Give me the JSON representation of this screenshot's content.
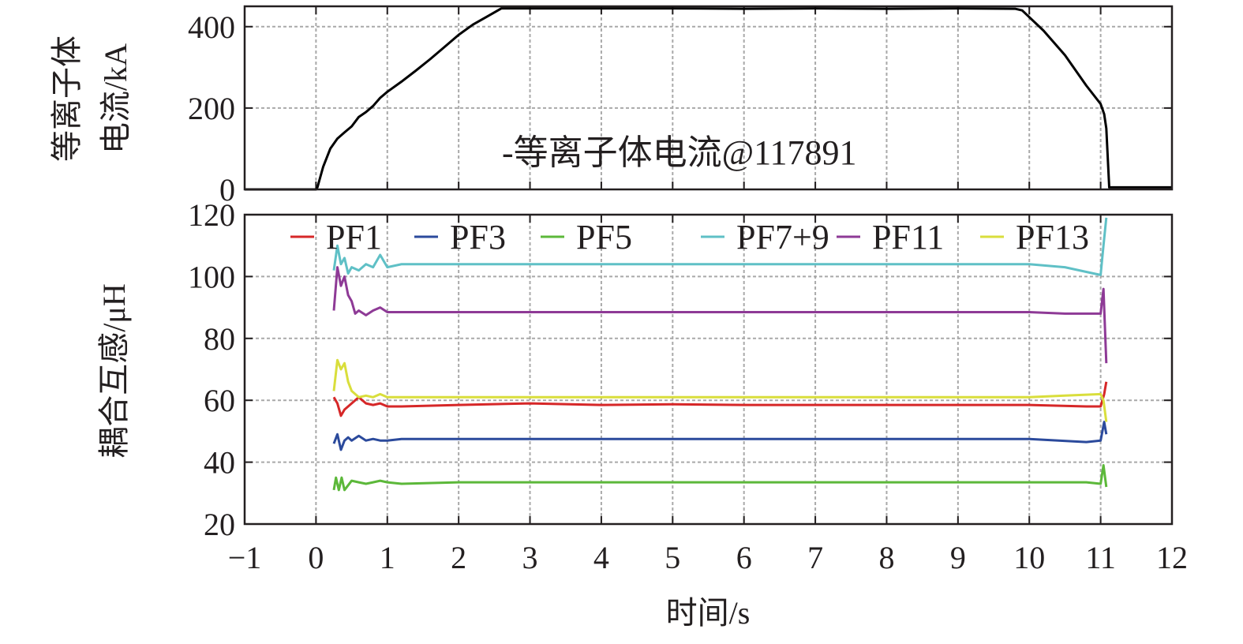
{
  "chart_data": [
    {
      "type": "line",
      "panel": "top",
      "ylabel_line1": "等离子体",
      "ylabel_line2": "电流/kA",
      "xlim": [
        -1,
        12
      ],
      "ylim": [
        0,
        450
      ],
      "yticks": [
        0,
        200,
        400
      ],
      "grid": true,
      "legend": "bottom-center",
      "annotation": "-等离子体电流@117891",
      "series": [
        {
          "name": "等离子体电流@117891",
          "color": "#000000",
          "x": [
            -1,
            0.0,
            0.02,
            0.1,
            0.2,
            0.3,
            0.4,
            0.5,
            0.6,
            0.7,
            0.8,
            0.9,
            1.0,
            1.2,
            1.4,
            1.6,
            1.8,
            2.0,
            2.2,
            2.4,
            2.6,
            3.0,
            4.0,
            5.0,
            6.0,
            7.0,
            8.0,
            9.0,
            9.8,
            9.9,
            10.2,
            10.5,
            10.8,
            11.0,
            11.05,
            11.08,
            11.12,
            12
          ],
          "y": [
            0,
            0,
            5,
            55,
            100,
            125,
            140,
            155,
            178,
            190,
            205,
            225,
            240,
            265,
            292,
            320,
            350,
            380,
            405,
            425,
            445,
            445,
            445,
            445,
            444,
            445,
            444,
            445,
            444,
            440,
            390,
            330,
            255,
            210,
            185,
            150,
            5,
            5
          ]
        }
      ]
    },
    {
      "type": "line",
      "panel": "bottom",
      "xlabel": "时间/s",
      "ylabel": "耦合互感/μH",
      "xlim": [
        -1,
        12
      ],
      "ylim": [
        20,
        120
      ],
      "xticks": [
        -1,
        0,
        1,
        2,
        3,
        4,
        5,
        6,
        7,
        8,
        9,
        10,
        11,
        12
      ],
      "xtick_labels": [
        "−1",
        "0",
        "1",
        "2",
        "3",
        "4",
        "5",
        "6",
        "7",
        "8",
        "9",
        "10",
        "11",
        "12"
      ],
      "yticks": [
        20,
        40,
        60,
        80,
        100,
        120
      ],
      "grid": true,
      "legend": "top",
      "series": [
        {
          "name": "PF1",
          "color": "#d62728",
          "x": [
            0.25,
            0.3,
            0.35,
            0.4,
            0.5,
            0.6,
            0.7,
            0.8,
            0.9,
            1.0,
            1.2,
            2.0,
            3.0,
            4.0,
            5.0,
            6.0,
            7.0,
            8.0,
            9.0,
            10.0,
            10.8,
            11.0,
            11.05,
            11.08
          ],
          "y": [
            61,
            59,
            55,
            57,
            59,
            61,
            59,
            58.5,
            59,
            58,
            58,
            58.5,
            59,
            58.5,
            58.7,
            58.5,
            58.5,
            58.5,
            58.5,
            58.5,
            58,
            58,
            62,
            66
          ]
        },
        {
          "name": "PF3",
          "color": "#2b4a9c",
          "x": [
            0.25,
            0.3,
            0.35,
            0.4,
            0.45,
            0.5,
            0.6,
            0.7,
            0.8,
            0.9,
            1.0,
            1.2,
            2.0,
            3.0,
            4.0,
            5.0,
            6.0,
            7.0,
            8.0,
            9.0,
            10.0,
            10.8,
            11.0,
            11.05,
            11.08
          ],
          "y": [
            46,
            49,
            44,
            47,
            48,
            47,
            48.5,
            47,
            47.5,
            47,
            47,
            47.5,
            47.5,
            47.5,
            47.5,
            47.5,
            47.5,
            47.5,
            47.5,
            47.5,
            47.5,
            46.5,
            47,
            53,
            49
          ]
        },
        {
          "name": "PF5",
          "color": "#5cb83a",
          "x": [
            0.25,
            0.28,
            0.32,
            0.36,
            0.4,
            0.5,
            0.6,
            0.7,
            0.8,
            0.9,
            1.0,
            1.2,
            2.0,
            3.0,
            4.0,
            5.0,
            6.0,
            7.0,
            8.0,
            9.0,
            10.0,
            10.8,
            11.0,
            11.04,
            11.08
          ],
          "y": [
            31,
            35,
            31,
            35,
            31,
            34,
            33.5,
            33,
            33.5,
            34,
            33.5,
            33,
            33.5,
            33.5,
            33.5,
            33.5,
            33.5,
            33.5,
            33.5,
            33.5,
            33.5,
            33.5,
            33,
            39,
            32
          ]
        },
        {
          "name": "PF7+9",
          "color": "#5fc0c6",
          "x": [
            0.25,
            0.3,
            0.35,
            0.4,
            0.45,
            0.5,
            0.6,
            0.7,
            0.8,
            0.9,
            1.0,
            1.2,
            2.0,
            3.0,
            4.0,
            5.0,
            6.0,
            7.0,
            8.0,
            9.0,
            10.0,
            10.5,
            10.9,
            11.0,
            11.04,
            11.08
          ],
          "y": [
            102,
            110,
            104,
            106,
            101,
            103,
            102,
            104,
            103,
            107,
            103,
            104,
            104,
            104,
            104,
            104,
            104,
            104,
            104,
            104,
            104,
            103,
            101,
            100.5,
            110,
            119
          ]
        },
        {
          "name": "PF11",
          "color": "#8e3a96",
          "x": [
            0.25,
            0.3,
            0.35,
            0.4,
            0.45,
            0.5,
            0.55,
            0.6,
            0.7,
            0.8,
            0.9,
            1.0,
            1.2,
            2.0,
            3.0,
            4.0,
            5.0,
            6.0,
            7.0,
            8.0,
            9.0,
            10.0,
            10.5,
            11.0,
            11.04,
            11.08
          ],
          "y": [
            89,
            103,
            97,
            100,
            94,
            92,
            88,
            89,
            87.5,
            89,
            90,
            88.5,
            88.5,
            88.5,
            88.5,
            88.5,
            88.5,
            88.5,
            88.5,
            88.5,
            88.5,
            88.5,
            88,
            88,
            96,
            72
          ]
        },
        {
          "name": "PF13",
          "color": "#d9de3c",
          "x": [
            0.25,
            0.3,
            0.35,
            0.4,
            0.45,
            0.5,
            0.6,
            0.7,
            0.8,
            0.9,
            1.0,
            1.2,
            2.0,
            3.0,
            4.0,
            5.0,
            6.0,
            7.0,
            8.0,
            9.0,
            10.0,
            10.5,
            11.0,
            11.04,
            11.08
          ],
          "y": [
            63,
            73,
            70,
            72,
            66,
            63,
            61,
            61.5,
            61,
            62,
            61,
            61,
            61,
            61,
            61,
            61,
            61,
            61,
            61,
            61,
            61,
            61.5,
            62,
            60,
            53
          ]
        }
      ]
    }
  ]
}
